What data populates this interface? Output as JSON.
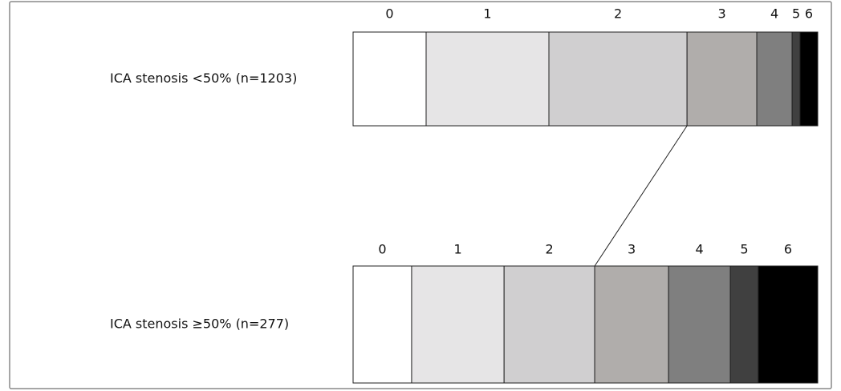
{
  "chart_data": {
    "type": "stacked_bar_h",
    "categories": [
      "0",
      "1",
      "2",
      "3",
      "4",
      "5",
      "6"
    ],
    "colors": [
      "#ffffff",
      "#e6e5e6",
      "#d0cfd0",
      "#b0adab",
      "#7f7f7f",
      "#404040",
      "#000000"
    ],
    "series": [
      {
        "name": "ICA stenosis <50% (n=1203)",
        "values": [
          15.7,
          26.4,
          29.7,
          15.0,
          7.6,
          1.7,
          3.8
        ]
      },
      {
        "name": "ICA stenosis ≥50% (n=277)",
        "values": [
          12.6,
          19.9,
          19.5,
          15.9,
          13.3,
          6.0,
          12.8
        ]
      }
    ]
  }
}
